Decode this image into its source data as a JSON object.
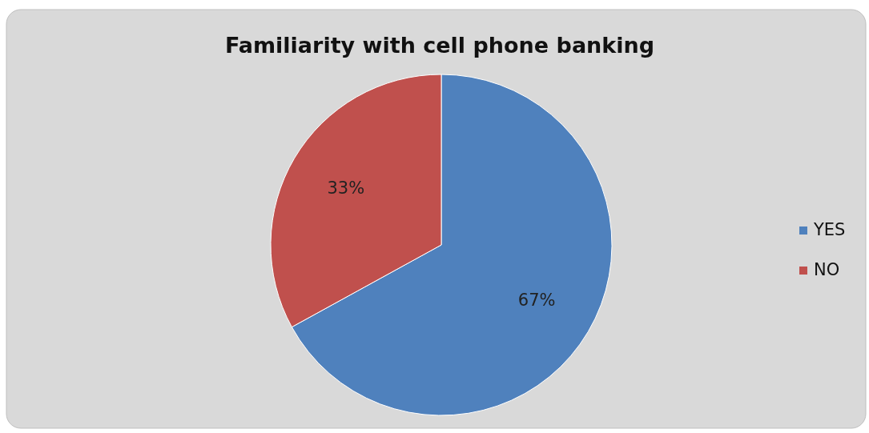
{
  "chart_data": {
    "type": "pie",
    "title": "Familiarity with cell phone banking",
    "categories": [
      "YES",
      "NO"
    ],
    "values": [
      67,
      33
    ],
    "colors": [
      "#4f81bd",
      "#c0504d"
    ],
    "value_labels": [
      "67%",
      "33%"
    ],
    "legend": "right"
  }
}
